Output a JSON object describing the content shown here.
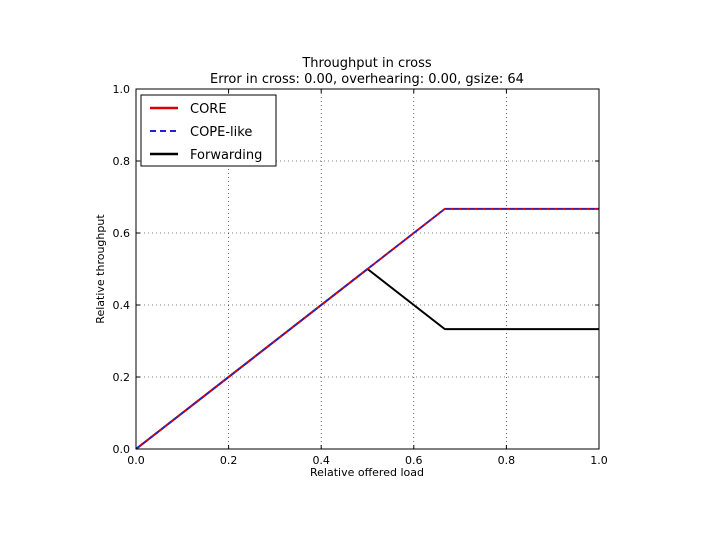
{
  "chart_data": {
    "type": "line",
    "title": "Throughput in cross",
    "subtitle": "Error in cross: 0.00, overhearing: 0.00, gsize: 64",
    "xlabel": "Relative offered load",
    "ylabel": "Relative throughput",
    "xlim": [
      0.0,
      1.0
    ],
    "ylim": [
      0.0,
      1.0
    ],
    "xticks": [
      "0.0",
      "0.2",
      "0.4",
      "0.6",
      "0.8",
      "1.0"
    ],
    "yticks": [
      "0.0",
      "0.2",
      "0.4",
      "0.6",
      "0.8",
      "1.0"
    ],
    "grid": true,
    "legend_position": "top-left",
    "series": [
      {
        "name": "CORE",
        "color": "#dd0000",
        "style": "solid",
        "x": [
          0.0,
          0.5,
          0.667,
          1.0
        ],
        "y": [
          0.0,
          0.5,
          0.667,
          0.667
        ]
      },
      {
        "name": "COPE-like",
        "color": "#2222cc",
        "style": "dashed",
        "x": [
          0.0,
          0.5,
          0.667,
          1.0
        ],
        "y": [
          0.0,
          0.5,
          0.667,
          0.667
        ]
      },
      {
        "name": "Forwarding",
        "color": "#000000",
        "style": "solid",
        "x": [
          0.0,
          0.5,
          0.667,
          1.0
        ],
        "y": [
          0.0,
          0.5,
          0.333,
          0.333
        ]
      }
    ]
  }
}
